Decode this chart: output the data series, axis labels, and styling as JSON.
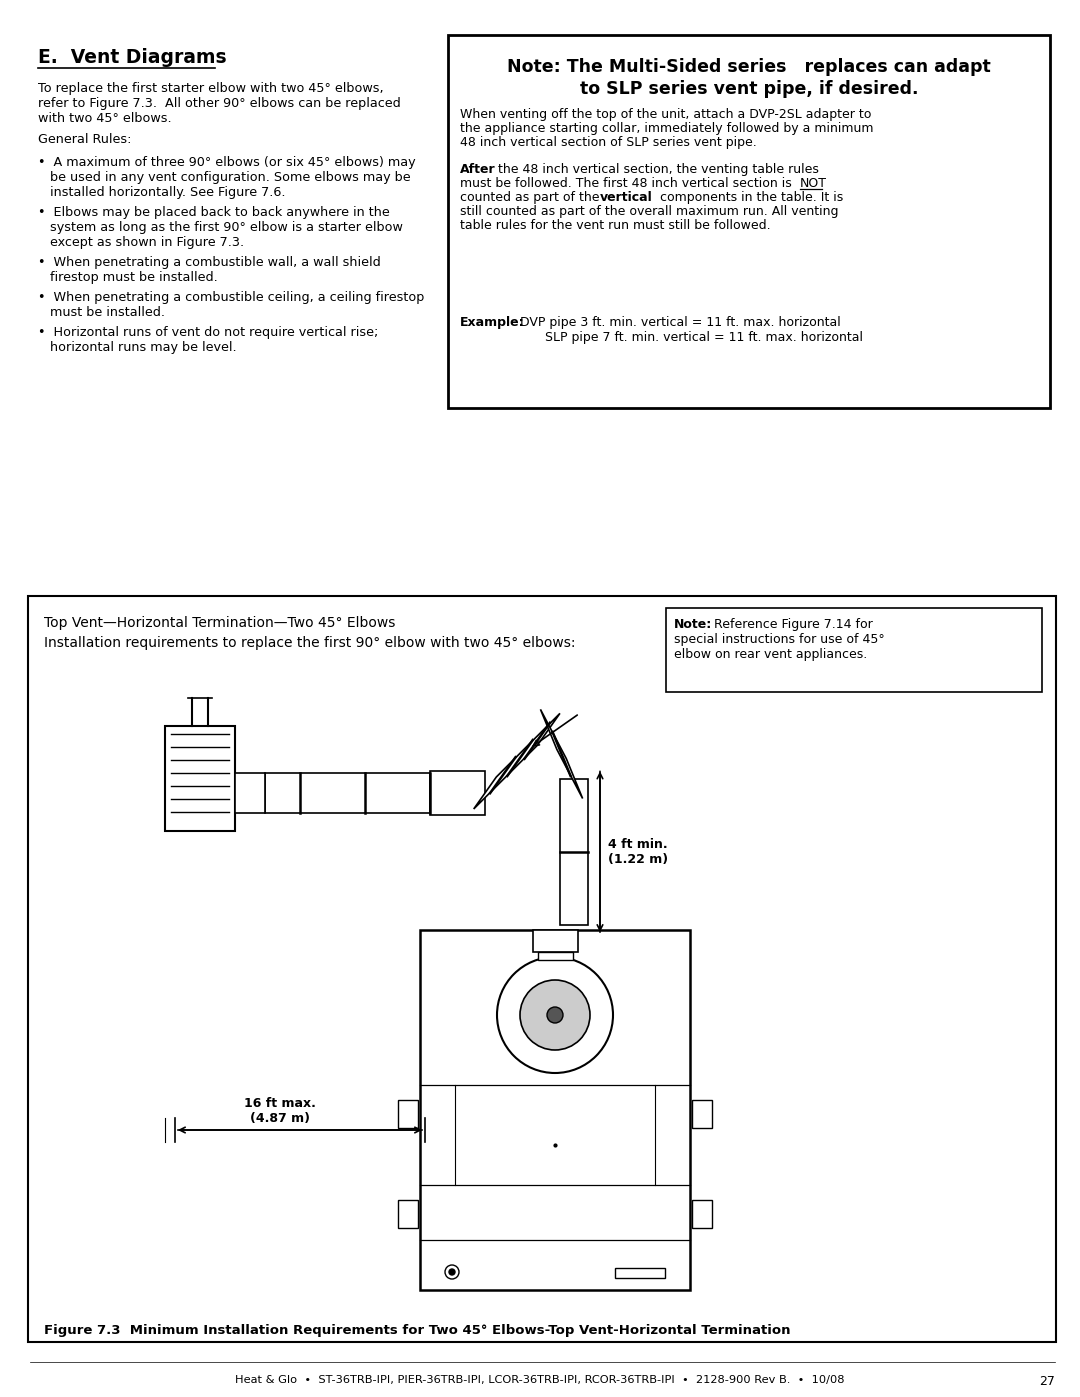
{
  "page_bg": "#ffffff",
  "section_title": "E.  Vent Diagrams",
  "note_box_title1": "Note: The Multi-Sided series   replaces can adapt",
  "note_box_title2": "to SLP series vent pipe, if desired.",
  "note_box_para1": "When venting off the top of the unit, attach a DVP-2SL adapter to\nthe appliance starting collar, immediately followed by a minimum\n48 inch vertical section of SLP series vent pipe.",
  "diagram_box_title": "Top Vent—Horizontal Termination—Two 45° Elbows",
  "diagram_box_sub": "Installation requirements to replace the first 90° elbow with two 45° elbows:",
  "annotation_4ft": "4 ft min.\n(1.22 m)",
  "annotation_16ft": "16 ft max.\n(4.87 m)",
  "figure_caption": "Figure 7.3  Minimum Installation Requirements for Two 45° Elbows-Top Vent-Horizontal Termination",
  "footer": "Heat & Glo  •  ST-36TRB-IPI, PIER-36TRB-IPI, LCOR-36TRB-IPI, RCOR-36TRB-IPI  •  2128-900 Rev B.  •  10/08",
  "footer_page": "27",
  "left_col_lines": [
    [
      "To replace the first starter elbow with two 45° elbows,",
      82
    ],
    [
      "refer to Figure 7.3.  All other 90° elbows can be replaced",
      97
    ],
    [
      "with two 45° elbows.",
      112
    ],
    [
      "General Rules:",
      133
    ],
    [
      "•  A maximum of three 90° elbows (or six 45° elbows) may",
      156
    ],
    [
      "   be used in any vent configuration. Some elbows may be",
      171
    ],
    [
      "   installed horizontally. See Figure 7.6.",
      186
    ],
    [
      "•  Elbows may be placed back to back anywhere in the",
      206
    ],
    [
      "   system as long as the first 90° elbow is a starter elbow",
      221
    ],
    [
      "   except as shown in Figure 7.3.",
      236
    ],
    [
      "•  When penetrating a combustible wall, a wall shield",
      256
    ],
    [
      "   firestop must be installed.",
      271
    ],
    [
      "•  When penetrating a combustible ceiling, a ceiling firestop",
      291
    ],
    [
      "   must be installed.",
      306
    ],
    [
      "•  Horizontal runs of vent do not require vertical rise;",
      326
    ],
    [
      "   horizontal runs may be level.",
      341
    ]
  ]
}
